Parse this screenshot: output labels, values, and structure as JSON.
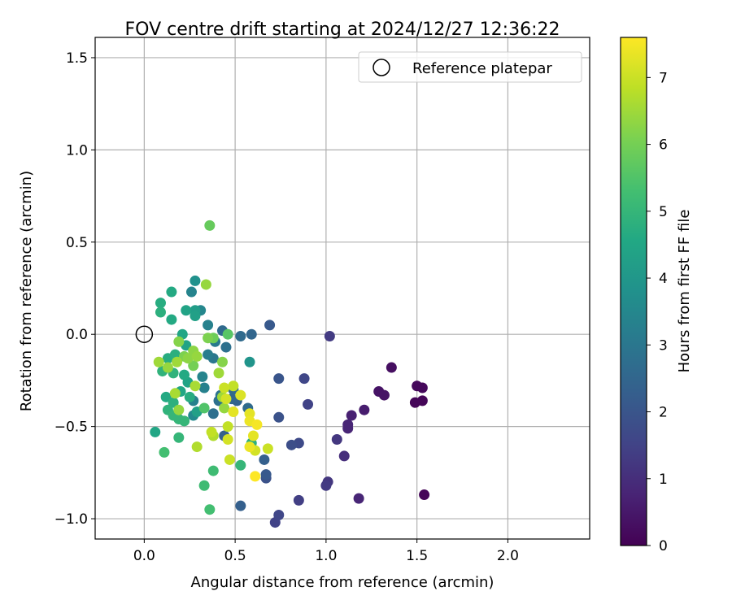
{
  "chart_data": {
    "type": "scatter",
    "title": "FOV centre drift starting at 2024/12/27 12:36:22",
    "xlabel": "Angular distance from reference (arcmin)",
    "ylabel": "Rotation from reference (arcmin)",
    "xlim": [
      -0.27,
      2.45
    ],
    "ylim": [
      -1.11,
      1.61
    ],
    "xticks": [
      0.0,
      0.5,
      1.0,
      1.5,
      2.0
    ],
    "xtick_labels": [
      "0.0",
      "0.5",
      "1.0",
      "1.5",
      "2.0"
    ],
    "yticks": [
      -1.0,
      -0.5,
      0.0,
      0.5,
      1.0,
      1.5
    ],
    "ytick_labels": [
      "−1.0",
      "−0.5",
      "0.0",
      "0.5",
      "1.0",
      "1.5"
    ],
    "grid": true,
    "legend": {
      "position": "upper-right",
      "entries": [
        {
          "label": "Reference platepar",
          "marker": "open-circle"
        }
      ]
    },
    "reference_point": {
      "x": 0.0,
      "y": 0.0
    },
    "colorbar": {
      "label": "Hours from first FF file",
      "range": [
        0,
        7.6
      ],
      "ticks": [
        0,
        1,
        2,
        3,
        4,
        5,
        6,
        7
      ],
      "tick_labels": [
        "0",
        "1",
        "2",
        "3",
        "4",
        "5",
        "6",
        "7"
      ],
      "colormap": "viridis"
    },
    "points": [
      {
        "x": 1.54,
        "y": -0.87,
        "h": 0.1
      },
      {
        "x": 1.49,
        "y": -0.37,
        "h": 0.1
      },
      {
        "x": 1.53,
        "y": -0.36,
        "h": 0.1
      },
      {
        "x": 1.5,
        "y": -0.28,
        "h": 0.15
      },
      {
        "x": 1.53,
        "y": -0.29,
        "h": 0.15
      },
      {
        "x": 1.36,
        "y": -0.18,
        "h": 0.3
      },
      {
        "x": 1.29,
        "y": -0.31,
        "h": 0.4
      },
      {
        "x": 1.32,
        "y": -0.33,
        "h": 0.4
      },
      {
        "x": 1.21,
        "y": -0.41,
        "h": 0.6
      },
      {
        "x": 1.14,
        "y": -0.44,
        "h": 0.7
      },
      {
        "x": 1.12,
        "y": -0.49,
        "h": 0.8
      },
      {
        "x": 1.12,
        "y": -0.51,
        "h": 0.8
      },
      {
        "x": 1.18,
        "y": -0.89,
        "h": 0.8
      },
      {
        "x": 1.1,
        "y": -0.66,
        "h": 1.0
      },
      {
        "x": 1.06,
        "y": -0.57,
        "h": 1.2
      },
      {
        "x": 1.01,
        "y": -0.8,
        "h": 1.2
      },
      {
        "x": 1.0,
        "y": -0.82,
        "h": 1.3
      },
      {
        "x": 1.02,
        "y": -0.01,
        "h": 1.3
      },
      {
        "x": 0.85,
        "y": -0.9,
        "h": 1.4
      },
      {
        "x": 0.9,
        "y": -0.38,
        "h": 1.5
      },
      {
        "x": 0.88,
        "y": -0.24,
        "h": 1.6
      },
      {
        "x": 0.85,
        "y": -0.59,
        "h": 1.7
      },
      {
        "x": 0.81,
        "y": -0.6,
        "h": 1.8
      },
      {
        "x": 0.74,
        "y": -0.98,
        "h": 1.6
      },
      {
        "x": 0.72,
        "y": -1.02,
        "h": 1.5
      },
      {
        "x": 0.74,
        "y": -0.45,
        "h": 1.9
      },
      {
        "x": 0.74,
        "y": -0.24,
        "h": 2.0
      },
      {
        "x": 0.69,
        "y": 0.05,
        "h": 2.1
      },
      {
        "x": 0.67,
        "y": -0.78,
        "h": 1.9
      },
      {
        "x": 0.67,
        "y": -0.76,
        "h": 2.1
      },
      {
        "x": 0.66,
        "y": -0.68,
        "h": 2.3
      },
      {
        "x": 0.53,
        "y": -0.93,
        "h": 2.3
      },
      {
        "x": 0.59,
        "y": 0.0,
        "h": 2.5
      },
      {
        "x": 0.53,
        "y": -0.01,
        "h": 2.6
      },
      {
        "x": 0.57,
        "y": -0.4,
        "h": 2.6
      },
      {
        "x": 0.51,
        "y": -0.36,
        "h": 2.4
      },
      {
        "x": 0.49,
        "y": -0.3,
        "h": 2.6
      },
      {
        "x": 0.48,
        "y": -0.35,
        "h": 2.5
      },
      {
        "x": 0.44,
        "y": -0.55,
        "h": 2.3
      },
      {
        "x": 0.43,
        "y": 0.02,
        "h": 2.6
      },
      {
        "x": 0.45,
        "y": -0.07,
        "h": 2.8
      },
      {
        "x": 0.42,
        "y": -0.33,
        "h": 2.9
      },
      {
        "x": 0.41,
        "y": -0.36,
        "h": 2.8
      },
      {
        "x": 0.38,
        "y": -0.43,
        "h": 2.8
      },
      {
        "x": 0.38,
        "y": -0.13,
        "h": 3.0
      },
      {
        "x": 0.39,
        "y": -0.04,
        "h": 3.1
      },
      {
        "x": 0.35,
        "y": -0.11,
        "h": 3.2
      },
      {
        "x": 0.35,
        "y": 0.05,
        "h": 3.3
      },
      {
        "x": 0.33,
        "y": -0.29,
        "h": 3.3
      },
      {
        "x": 0.32,
        "y": -0.23,
        "h": 3.4
      },
      {
        "x": 0.27,
        "y": -0.36,
        "h": 3.3
      },
      {
        "x": 0.27,
        "y": -0.44,
        "h": 3.6
      },
      {
        "x": 0.26,
        "y": 0.23,
        "h": 3.4
      },
      {
        "x": 0.31,
        "y": 0.13,
        "h": 3.5
      },
      {
        "x": 0.28,
        "y": 0.29,
        "h": 3.8
      },
      {
        "x": 0.58,
        "y": -0.15,
        "h": 3.9
      },
      {
        "x": 0.28,
        "y": 0.13,
        "h": 4.2
      },
      {
        "x": 0.28,
        "y": 0.1,
        "h": 4.3
      },
      {
        "x": 0.23,
        "y": 0.13,
        "h": 4.4
      },
      {
        "x": 0.23,
        "y": -0.06,
        "h": 4.4
      },
      {
        "x": 0.21,
        "y": 0.0,
        "h": 4.5
      },
      {
        "x": 0.15,
        "y": 0.08,
        "h": 4.6
      },
      {
        "x": 0.15,
        "y": 0.23,
        "h": 4.6
      },
      {
        "x": 0.09,
        "y": 0.17,
        "h": 4.7
      },
      {
        "x": 0.09,
        "y": 0.12,
        "h": 4.8
      },
      {
        "x": 0.13,
        "y": -0.13,
        "h": 4.7
      },
      {
        "x": 0.17,
        "y": -0.11,
        "h": 4.8
      },
      {
        "x": 0.1,
        "y": -0.2,
        "h": 4.9
      },
      {
        "x": 0.16,
        "y": -0.21,
        "h": 4.9
      },
      {
        "x": 0.22,
        "y": -0.22,
        "h": 4.6
      },
      {
        "x": 0.2,
        "y": -0.31,
        "h": 4.5
      },
      {
        "x": 0.24,
        "y": -0.26,
        "h": 4.4
      },
      {
        "x": 0.12,
        "y": -0.34,
        "h": 4.6
      },
      {
        "x": 0.16,
        "y": -0.37,
        "h": 4.8
      },
      {
        "x": 0.13,
        "y": -0.41,
        "h": 4.9
      },
      {
        "x": 0.16,
        "y": -0.44,
        "h": 5.0
      },
      {
        "x": 0.19,
        "y": -0.46,
        "h": 5.0
      },
      {
        "x": 0.22,
        "y": -0.47,
        "h": 4.6
      },
      {
        "x": 0.25,
        "y": -0.34,
        "h": 4.7
      },
      {
        "x": 0.29,
        "y": -0.42,
        "h": 4.3
      },
      {
        "x": 0.06,
        "y": -0.53,
        "h": 4.5
      },
      {
        "x": 0.19,
        "y": -0.56,
        "h": 5.0
      },
      {
        "x": 0.22,
        "y": -0.47,
        "h": 5.0
      },
      {
        "x": 0.59,
        "y": -0.59,
        "h": 4.8
      },
      {
        "x": 0.53,
        "y": -0.71,
        "h": 5.0
      },
      {
        "x": 0.38,
        "y": -0.74,
        "h": 5.2
      },
      {
        "x": 0.33,
        "y": -0.82,
        "h": 5.2
      },
      {
        "x": 0.36,
        "y": -0.95,
        "h": 5.3
      },
      {
        "x": 0.11,
        "y": -0.64,
        "h": 5.3
      },
      {
        "x": 0.33,
        "y": -0.4,
        "h": 5.5
      },
      {
        "x": 0.36,
        "y": 0.59,
        "h": 5.8
      },
      {
        "x": 0.34,
        "y": 0.27,
        "h": 6.4
      },
      {
        "x": 0.35,
        "y": -0.02,
        "h": 6.1
      },
      {
        "x": 0.38,
        "y": -0.02,
        "h": 5.9
      },
      {
        "x": 0.46,
        "y": 0.0,
        "h": 5.6
      },
      {
        "x": 0.19,
        "y": -0.04,
        "h": 6.2
      },
      {
        "x": 0.27,
        "y": -0.17,
        "h": 6.0
      },
      {
        "x": 0.22,
        "y": -0.12,
        "h": 6.1
      },
      {
        "x": 0.24,
        "y": -0.13,
        "h": 6.3
      },
      {
        "x": 0.27,
        "y": -0.09,
        "h": 6.3
      },
      {
        "x": 0.29,
        "y": -0.12,
        "h": 6.4
      },
      {
        "x": 0.18,
        "y": -0.15,
        "h": 6.5
      },
      {
        "x": 0.13,
        "y": -0.18,
        "h": 6.4
      },
      {
        "x": 0.08,
        "y": -0.15,
        "h": 6.5
      },
      {
        "x": 0.41,
        "y": -0.21,
        "h": 6.5
      },
      {
        "x": 0.43,
        "y": -0.15,
        "h": 6.2
      },
      {
        "x": 0.17,
        "y": -0.32,
        "h": 6.6
      },
      {
        "x": 0.19,
        "y": -0.41,
        "h": 6.4
      },
      {
        "x": 0.28,
        "y": -0.28,
        "h": 6.6
      },
      {
        "x": 0.43,
        "y": -0.34,
        "h": 6.5
      },
      {
        "x": 0.44,
        "y": -0.4,
        "h": 6.4
      },
      {
        "x": 0.37,
        "y": -0.53,
        "h": 6.9
      },
      {
        "x": 0.38,
        "y": -0.55,
        "h": 6.7
      },
      {
        "x": 0.29,
        "y": -0.61,
        "h": 6.7
      },
      {
        "x": 0.44,
        "y": -0.29,
        "h": 7.0
      },
      {
        "x": 0.49,
        "y": -0.28,
        "h": 6.9
      },
      {
        "x": 0.45,
        "y": -0.35,
        "h": 7.1
      },
      {
        "x": 0.53,
        "y": -0.33,
        "h": 7.2
      },
      {
        "x": 0.49,
        "y": -0.42,
        "h": 7.3
      },
      {
        "x": 0.46,
        "y": -0.5,
        "h": 6.9
      },
      {
        "x": 0.46,
        "y": -0.57,
        "h": 7.1
      },
      {
        "x": 0.58,
        "y": -0.43,
        "h": 7.3
      },
      {
        "x": 0.58,
        "y": -0.47,
        "h": 7.4
      },
      {
        "x": 0.62,
        "y": -0.49,
        "h": 7.5
      },
      {
        "x": 0.6,
        "y": -0.55,
        "h": 7.3
      },
      {
        "x": 0.58,
        "y": -0.61,
        "h": 7.4
      },
      {
        "x": 0.61,
        "y": -0.63,
        "h": 7.1
      },
      {
        "x": 0.68,
        "y": -0.62,
        "h": 7.0
      },
      {
        "x": 0.47,
        "y": -0.68,
        "h": 7.0
      },
      {
        "x": 0.61,
        "y": -0.77,
        "h": 7.6
      }
    ]
  }
}
